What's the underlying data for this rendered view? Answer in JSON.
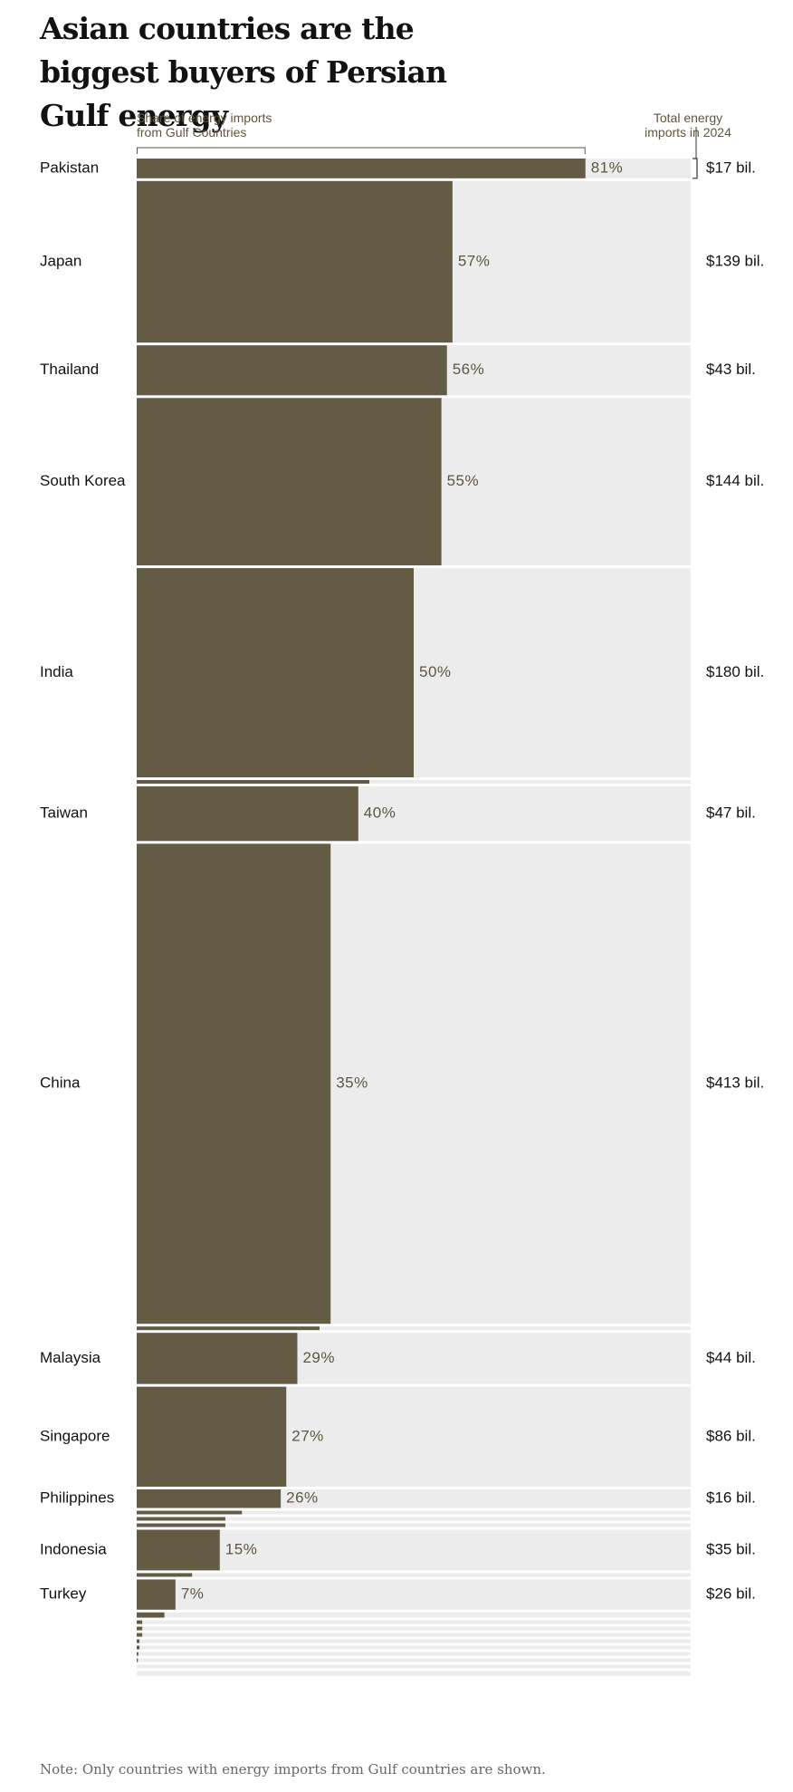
{
  "chart_data": {
    "type": "bar",
    "title": "Asian countries are the biggest buyers of Persian Gulf energy",
    "share_axis_label": "Share of energy imports\nfrom Gulf Countries",
    "total_axis_label": "Total energy\nimports in 2024",
    "note": "Note: Only countries with energy imports from Gulf countries are shown.",
    "xlim": [
      0,
      100
    ],
    "colors": {
      "bar": "#645b45",
      "background": "#ececec",
      "label": "#5f5640",
      "text": "#121212"
    },
    "labeled_rows": [
      {
        "country": "Pakistan",
        "share": 81,
        "share_label": "81%",
        "total": 17,
        "total_label": "$17 bil."
      },
      {
        "country": "Japan",
        "share": 57,
        "share_label": "57%",
        "total": 139,
        "total_label": "$139 bil."
      },
      {
        "country": "Thailand",
        "share": 56,
        "share_label": "56%",
        "total": 43,
        "total_label": "$43 bil."
      },
      {
        "country": "South Korea",
        "share": 55,
        "share_label": "55%",
        "total": 144,
        "total_label": "$144 bil."
      },
      {
        "country": "India",
        "share": 50,
        "share_label": "50%",
        "total": 180,
        "total_label": "$180 bil."
      },
      {
        "country": "Taiwan",
        "share": 40,
        "share_label": "40%",
        "total": 47,
        "total_label": "$47 bil."
      },
      {
        "country": "China",
        "share": 35,
        "share_label": "35%",
        "total": 413,
        "total_label": "$413 bil."
      },
      {
        "country": "Malaysia",
        "share": 29,
        "share_label": "29%",
        "total": 44,
        "total_label": "$44 bil."
      },
      {
        "country": "Singapore",
        "share": 27,
        "share_label": "27%",
        "total": 86,
        "total_label": "$86 bil."
      },
      {
        "country": "Philippines",
        "share": 26,
        "share_label": "26%",
        "total": 16,
        "total_label": "$16 bil."
      },
      {
        "country": "Indonesia",
        "share": 15,
        "share_label": "15%",
        "total": 35,
        "total_label": "$35 bil."
      },
      {
        "country": "Turkey",
        "share": 7,
        "share_label": "7%",
        "total": 26,
        "total_label": "$26 bil."
      }
    ],
    "unlabeled_rows": [
      {
        "share": 42,
        "total": 2
      },
      {
        "share": 33,
        "total": 2
      },
      {
        "share": 19,
        "total": 2
      },
      {
        "share": 16,
        "total": 3
      },
      {
        "share": 16,
        "total": 3
      },
      {
        "share": 10,
        "total": 1.5
      },
      {
        "share": 5,
        "total": 4.5
      },
      {
        "share": 1,
        "total": 1.2
      },
      {
        "share": 1,
        "total": 1.2
      },
      {
        "share": 1,
        "total": 1
      },
      {
        "share": 0.5,
        "total": 1
      },
      {
        "share": 0.5,
        "total": 1
      },
      {
        "share": 0.3,
        "total": 1
      },
      {
        "share": 0.2,
        "total": 1
      },
      {
        "share": 0,
        "total": 1
      },
      {
        "share": 0,
        "total": 4
      }
    ]
  }
}
